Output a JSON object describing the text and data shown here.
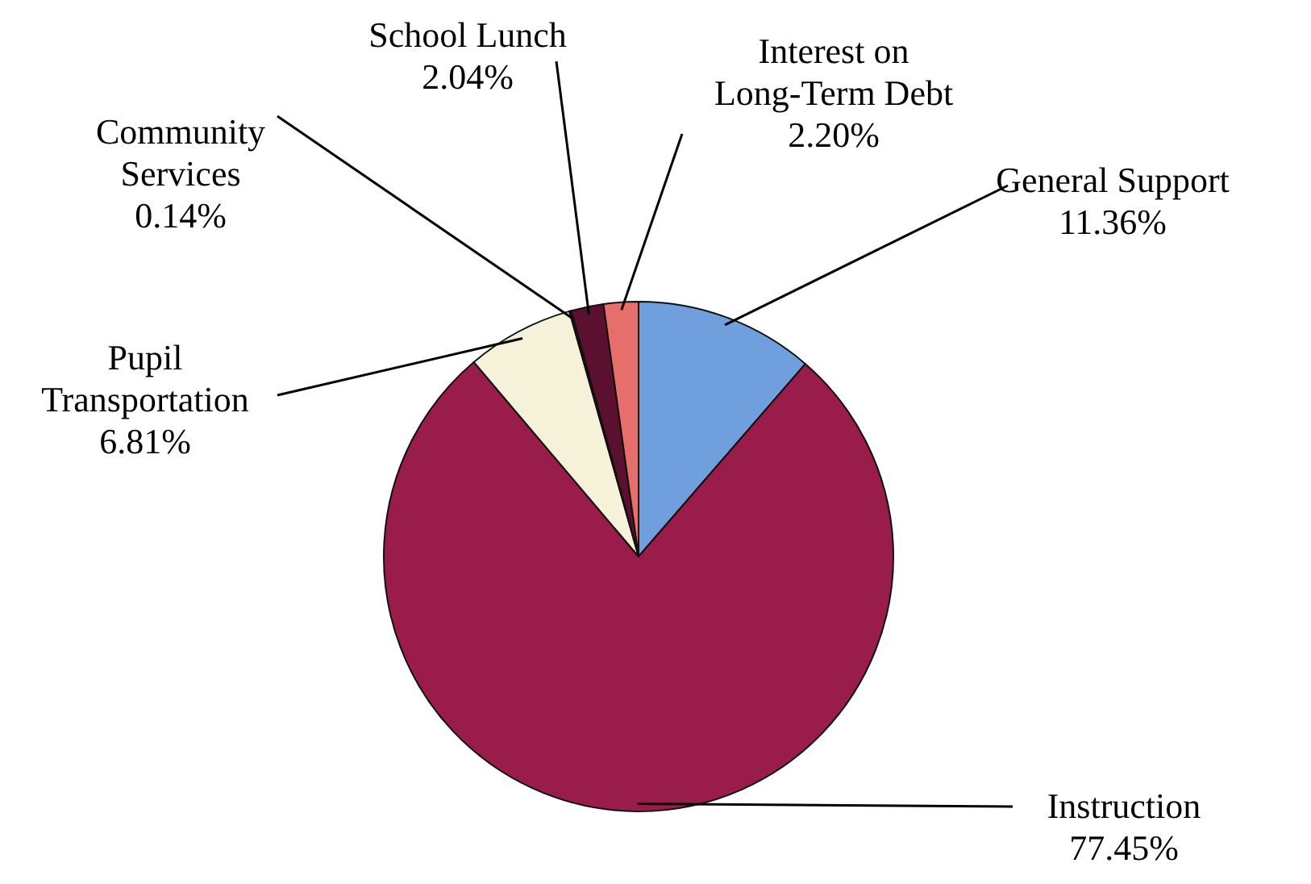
{
  "chart_data": {
    "type": "pie",
    "categories": [
      "General Support",
      "Instruction",
      "Pupil Transportation",
      "Community Services",
      "School Lunch",
      "Interest on Long-Term Debt"
    ],
    "values": [
      11.36,
      77.45,
      6.81,
      0.14,
      2.04,
      2.2
    ],
    "value_labels": [
      "11.36%",
      "77.45%",
      "6.81%",
      "0.14%",
      "2.04%",
      "2.20%"
    ],
    "colors": [
      "#6f9fdc",
      "#9a1c4b",
      "#f6f1d9",
      "#3a0a1e",
      "#5c1030",
      "#e66f6b"
    ]
  }
}
